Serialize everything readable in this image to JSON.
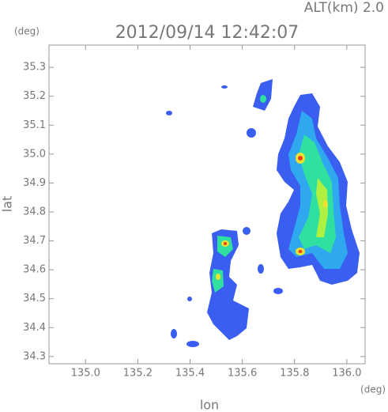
{
  "chart_data": {
    "type": "map",
    "header": "ALT(km) 2.0",
    "title": "2012/09/14 12:42:07",
    "y_unit": "(deg)",
    "x_unit": "(deg)",
    "x_label": "lon",
    "y_label": "lat",
    "xlim": [
      134.86,
      136.07
    ],
    "ylim": [
      34.275,
      35.377
    ],
    "xticks": [
      {
        "value": 135,
        "label": "135.0"
      },
      135.2,
      135.4,
      135.6,
      135.8,
      {
        "value": 136,
        "label": "136.0"
      }
    ],
    "yticks": [
      34.3,
      34.4,
      34.5,
      34.6,
      34.7,
      34.8,
      34.9,
      {
        "value": 35,
        "label": "35.0"
      },
      35.1,
      35.2,
      35.3
    ]
  }
}
